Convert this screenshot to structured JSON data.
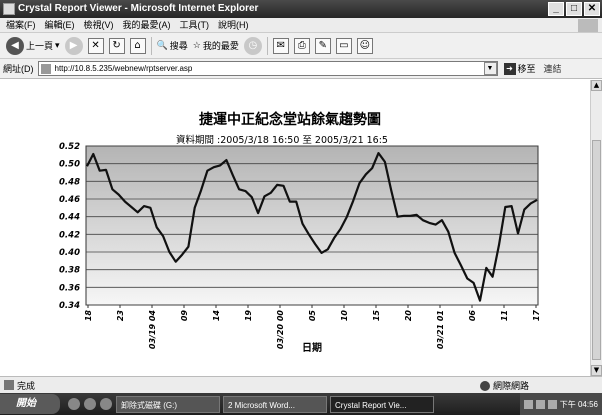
{
  "window": {
    "title": "Crystal Report Viewer - Microsoft Internet Explorer",
    "controls": [
      "_",
      "□",
      "✕"
    ]
  },
  "menu": [
    "檔案(F)",
    "編輯(E)",
    "檢視(V)",
    "我的最愛(A)",
    "工具(T)",
    "說明(H)"
  ],
  "toolbar": {
    "back_label": "上一頁",
    "search_label": "搜尋",
    "favorites_label": "我的最愛"
  },
  "address": {
    "label": "網址(D)",
    "url": "http://10.8.5.235/webnew/rptserver.asp",
    "go_label": "移至",
    "links_label": "連結"
  },
  "status": {
    "text": "完成",
    "zone": "網際網路"
  },
  "taskbar": {
    "start_label": "開始",
    "tasks": [
      "卸除式磁碟 (G:)",
      "2 Microsoft Word...",
      "Crystal Report Vie..."
    ],
    "clock": "下午 04:56"
  },
  "report": {
    "title": "捷運中正紀念堂站餘氣趨勢圖",
    "subtitle": "資料期間 :2005/3/18 16:50 至 2005/3/21 16:5"
  },
  "chart_data": {
    "type": "line",
    "xlabel": "日期",
    "ylabel": "",
    "ylim": [
      0.34,
      0.52
    ],
    "grid": true,
    "yticks": [
      "0.52",
      "0.50",
      "0.48",
      "0.46",
      "0.44",
      "0.42",
      "0.40",
      "0.38",
      "0.36",
      "0.34"
    ],
    "xticks": [
      "18",
      "23",
      "03/19 04",
      "09",
      "14",
      "19",
      "03/20 00",
      "05",
      "10",
      "15",
      "20",
      "03/21 01",
      "06",
      "11",
      "17"
    ],
    "series": [
      {
        "values": [
          0.497,
          0.511,
          0.492,
          0.493,
          0.471,
          0.465,
          0.457,
          0.451,
          0.445,
          0.452,
          0.45,
          0.428,
          0.418,
          0.4,
          0.389,
          0.397,
          0.406,
          0.45,
          0.47,
          0.492,
          0.496,
          0.498,
          0.504,
          0.487,
          0.471,
          0.469,
          0.462,
          0.444,
          0.463,
          0.467,
          0.476,
          0.475,
          0.457,
          0.457,
          0.432,
          0.42,
          0.409,
          0.399,
          0.403,
          0.416,
          0.426,
          0.44,
          0.458,
          0.478,
          0.488,
          0.495,
          0.512,
          0.502,
          0.47,
          0.44,
          0.441,
          0.441,
          0.442,
          0.436,
          0.433,
          0.431,
          0.436,
          0.423,
          0.399,
          0.385,
          0.37,
          0.365,
          0.345,
          0.382,
          0.372,
          0.408,
          0.451,
          0.452,
          0.421,
          0.448,
          0.455,
          0.459
        ]
      }
    ]
  }
}
